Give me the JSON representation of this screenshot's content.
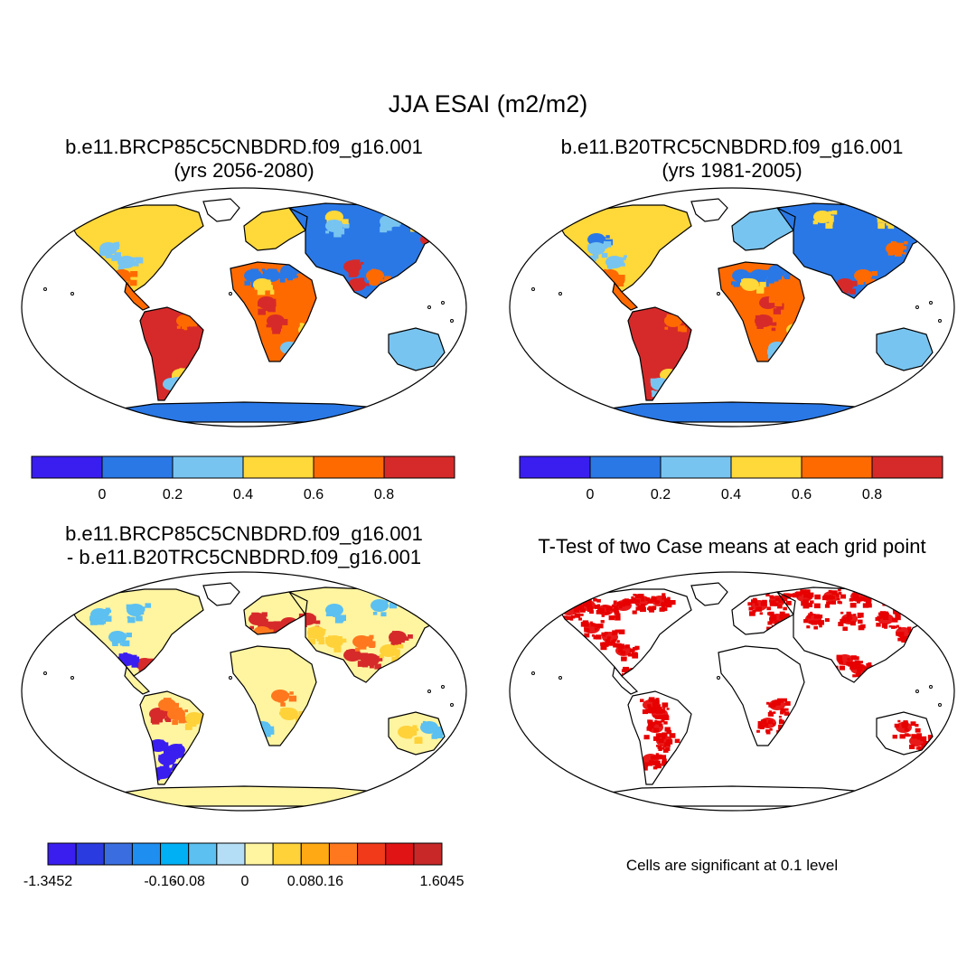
{
  "title": "JJA ESAI (m2/m2)",
  "panels": [
    {
      "id": "future",
      "title_line1": "b.e11.BRCP85C5CNBDRD.f09_g16.001",
      "title_line2": "(yrs 2056-2080)"
    },
    {
      "id": "historical",
      "title_line1": "b.e11.B20TRC5CNBDRD.f09_g16.001",
      "title_line2": "(yrs 1981-2005)"
    },
    {
      "id": "difference",
      "title_line1": "b.e11.BRCP85C5CNBDRD.f09_g16.001",
      "title_line2": "- b.e11.B20TRC5CNBDRD.f09_g16.001"
    },
    {
      "id": "ttest",
      "title_line1": "T-Test of two Case means at each grid point",
      "title_line2": ""
    }
  ],
  "colorbar_abs": {
    "colors": [
      "#3a1ef0",
      "#2a78e6",
      "#78c4f0",
      "#ffd83a",
      "#ff6a00",
      "#d62a2a"
    ],
    "labels": [
      "0",
      "0.2",
      "0.4",
      "0.6",
      "0.8"
    ]
  },
  "colorbar_diff": {
    "colors": [
      "#3a1ef0",
      "#2a3ce0",
      "#3a6ee0",
      "#1e8ef0",
      "#00b0f5",
      "#5cc0f0",
      "#b4def5",
      "#fff4a0",
      "#ffd23a",
      "#ffaa14",
      "#ff781e",
      "#f03a1a",
      "#e01414",
      "#c82828"
    ],
    "labels": [
      "-1.3452",
      "-0.16",
      "-0.08",
      "0",
      "0.08",
      "0.16",
      "1.6045"
    ]
  },
  "note": "Cells are significant at 0.1 level",
  "map_colors": {
    "ocean": "#ffffff",
    "coast": "#000000",
    "antarctica": "#2a78e6",
    "desert": "#2a78e6",
    "tundra": "#ffd83a",
    "boreal": "#78c4f0",
    "tropical": "#d62a2a",
    "savanna": "#ff6a00",
    "diff_base": "#fff4a0",
    "signif": "#e60000"
  }
}
